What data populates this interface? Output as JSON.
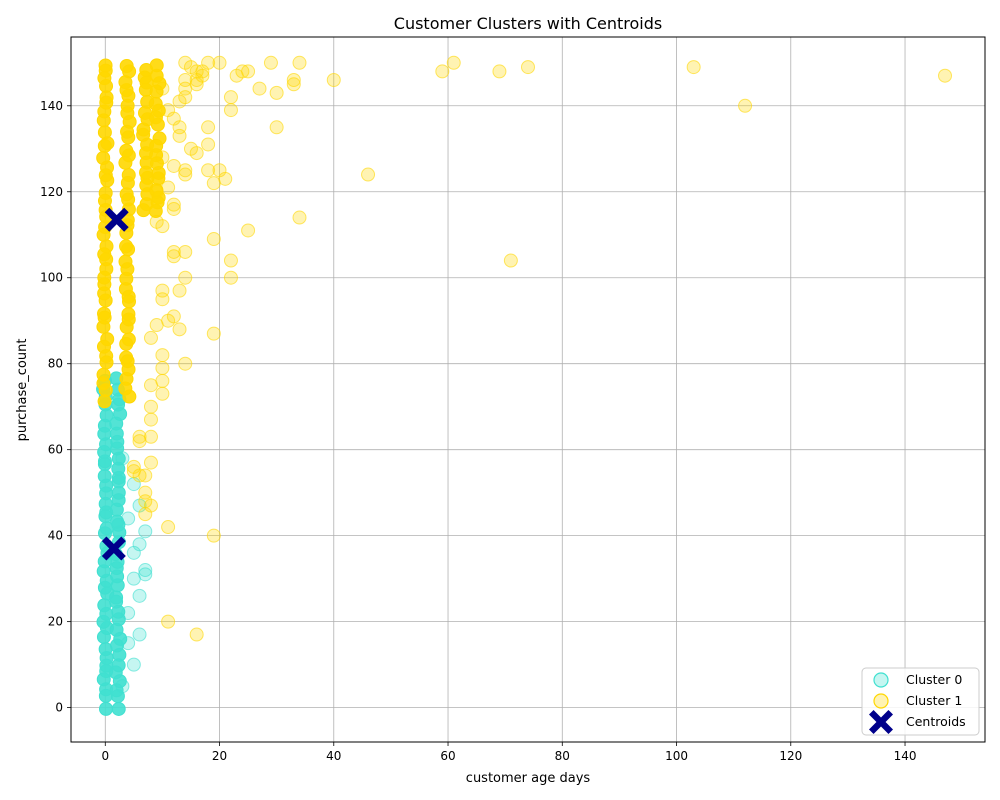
{
  "chart_data": {
    "type": "scatter",
    "title": "Customer Clusters with Centroids",
    "xlabel": "customer age days",
    "ylabel": "purchase_count",
    "xlim": [
      -6,
      154
    ],
    "ylim": [
      -8,
      156
    ],
    "xticks": [
      0,
      20,
      40,
      60,
      80,
      100,
      120,
      140
    ],
    "yticks": [
      0,
      20,
      40,
      60,
      80,
      100,
      120,
      140
    ],
    "grid": true,
    "legend_position": "lower-right",
    "colors": {
      "cluster0": "#40E0D0",
      "cluster1": "#FFD700",
      "centroids": "#00008B"
    },
    "series": [
      {
        "name": "Cluster 0",
        "marker": "circle",
        "dense_regions": [
          {
            "x_range": [
              0,
              4
            ],
            "y_range": [
              0,
              77
            ]
          }
        ],
        "points": [
          [
            5,
            10
          ],
          [
            6,
            17
          ],
          [
            6,
            26
          ],
          [
            7,
            31
          ],
          [
            7,
            32
          ],
          [
            6,
            38
          ],
          [
            7,
            41
          ],
          [
            6,
            47
          ],
          [
            4,
            22
          ],
          [
            5,
            30
          ],
          [
            5,
            36
          ],
          [
            4,
            44
          ],
          [
            5,
            52
          ],
          [
            3,
            58
          ],
          [
            4,
            15
          ],
          [
            3,
            5
          ]
        ]
      },
      {
        "name": "Cluster 1",
        "marker": "circle",
        "dense_regions": [
          {
            "x_range": [
              0,
              7
            ],
            "y_range": [
              72,
              150
            ]
          },
          {
            "x_range": [
              7,
              11
            ],
            "y_range": [
              115,
              150
            ]
          }
        ],
        "points": [
          [
            147,
            147
          ],
          [
            112,
            140
          ],
          [
            103,
            149
          ],
          [
            74,
            149
          ],
          [
            69,
            148
          ],
          [
            61,
            150
          ],
          [
            59,
            148
          ],
          [
            71,
            104
          ],
          [
            46,
            124
          ],
          [
            40,
            146
          ],
          [
            34,
            150
          ],
          [
            33,
            146
          ],
          [
            33,
            145
          ],
          [
            34,
            114
          ],
          [
            30,
            143
          ],
          [
            30,
            135
          ],
          [
            29,
            150
          ],
          [
            27,
            144
          ],
          [
            25,
            148
          ],
          [
            24,
            148
          ],
          [
            23,
            147
          ],
          [
            22,
            142
          ],
          [
            22,
            139
          ],
          [
            25,
            111
          ],
          [
            22,
            104
          ],
          [
            22,
            100
          ],
          [
            21,
            123
          ],
          [
            20,
            125
          ],
          [
            20,
            150
          ],
          [
            19,
            109
          ],
          [
            19,
            122
          ],
          [
            19,
            87
          ],
          [
            18,
            150
          ],
          [
            18,
            131
          ],
          [
            18,
            135
          ],
          [
            18,
            125
          ],
          [
            17,
            148
          ],
          [
            17,
            147
          ],
          [
            16,
            146
          ],
          [
            16,
            145
          ],
          [
            16,
            129
          ],
          [
            15,
            130
          ],
          [
            14,
            150
          ],
          [
            14,
            146
          ],
          [
            14,
            144
          ],
          [
            14,
            142
          ],
          [
            14,
            125
          ],
          [
            14,
            124
          ],
          [
            14,
            106
          ],
          [
            14,
            100
          ],
          [
            14,
            80
          ],
          [
            13,
            135
          ],
          [
            13,
            133
          ],
          [
            13,
            97
          ],
          [
            13,
            88
          ],
          [
            12,
            117
          ],
          [
            12,
            116
          ],
          [
            12,
            106
          ],
          [
            12,
            105
          ],
          [
            12,
            91
          ],
          [
            11,
            90
          ],
          [
            11,
            42
          ],
          [
            11,
            20
          ],
          [
            10,
            82
          ],
          [
            10,
            79
          ],
          [
            10,
            76
          ],
          [
            10,
            73
          ],
          [
            10,
            95
          ],
          [
            10,
            97
          ],
          [
            10,
            112
          ],
          [
            9,
            89
          ],
          [
            9,
            113
          ],
          [
            8,
            86
          ],
          [
            8,
            75
          ],
          [
            8,
            70
          ],
          [
            8,
            67
          ],
          [
            8,
            63
          ],
          [
            8,
            57
          ],
          [
            8,
            47
          ],
          [
            7,
            54
          ],
          [
            7,
            50
          ],
          [
            7,
            48
          ],
          [
            7,
            45
          ],
          [
            6,
            62
          ],
          [
            6,
            54
          ],
          [
            6,
            63
          ],
          [
            5,
            56
          ],
          [
            5,
            55
          ],
          [
            19,
            40
          ],
          [
            16,
            17
          ],
          [
            9,
            120
          ],
          [
            10,
            128
          ],
          [
            11,
            121
          ],
          [
            12,
            126
          ],
          [
            13,
            141
          ],
          [
            15,
            149
          ],
          [
            16,
            148
          ],
          [
            11,
            139
          ],
          [
            12,
            137
          ],
          [
            10,
            144
          ]
        ]
      },
      {
        "name": "Centroids",
        "marker": "X",
        "points": [
          [
            2,
            113.5
          ],
          [
            1.5,
            37
          ]
        ]
      }
    ]
  }
}
